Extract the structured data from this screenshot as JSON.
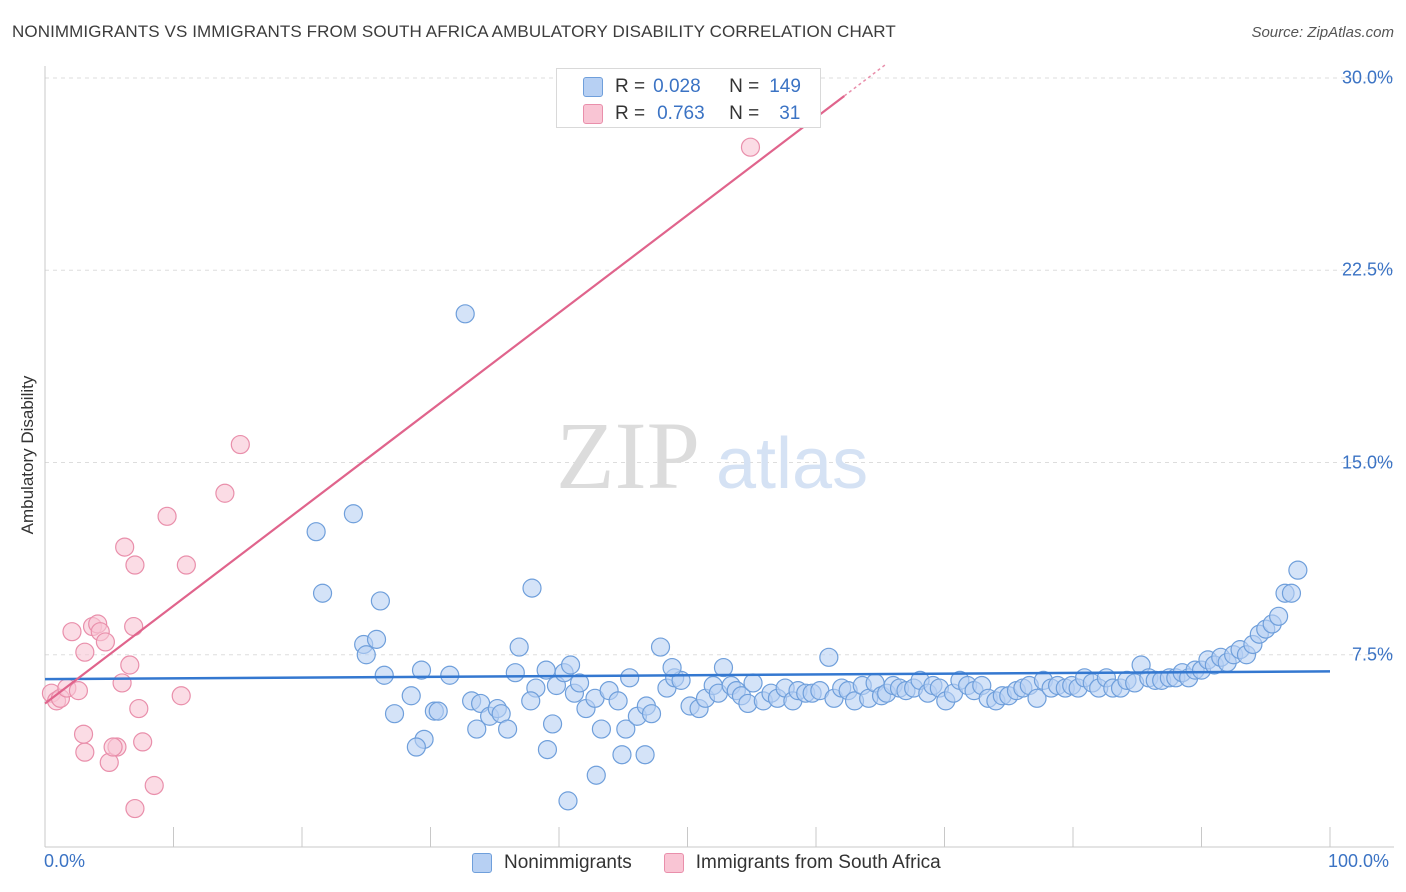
{
  "title": "NONIMMIGRANTS VS IMMIGRANTS FROM SOUTH AFRICA AMBULATORY DISABILITY CORRELATION CHART",
  "source": "Source: ZipAtlas.com",
  "watermark": {
    "zip": "ZIP",
    "atlas": "atlas"
  },
  "legend": {
    "series1": {
      "r_label": "R =",
      "r_value": "0.028",
      "n_label": "N =",
      "n_value": "149"
    },
    "series2": {
      "r_label": "R =",
      "r_value": "0.763",
      "n_label": "N =",
      "n_value": "31"
    }
  },
  "colors": {
    "blue_fill": "#b7d0f3",
    "blue_stroke": "#6f9fdb",
    "blue_line": "#3478d0",
    "pink_fill": "#f9c5d4",
    "pink_stroke": "#e98fab",
    "pink_line": "#e0648c",
    "tick_text": "#3b73c4"
  },
  "chart_data": {
    "type": "scatter",
    "title": "NONIMMIGRANTS VS IMMIGRANTS FROM SOUTH AFRICA AMBULATORY DISABILITY CORRELATION CHART",
    "xlabel": "",
    "ylabel": "Ambulatory Disability",
    "xlim": [
      0,
      100
    ],
    "ylim": [
      0,
      30
    ],
    "x_tick_labels": [
      "0.0%",
      "100.0%"
    ],
    "y_ticks": [
      7.5,
      15.0,
      22.5,
      30.0
    ],
    "y_tick_labels": [
      "7.5%",
      "15.0%",
      "22.5%",
      "30.0%"
    ],
    "grid": "horizontal dashed",
    "legend_position": "top-center and bottom",
    "series": [
      {
        "name": "Nonimmigrants",
        "R": 0.028,
        "N": 149,
        "trend": {
          "x": [
            0,
            100
          ],
          "y": [
            6.55,
            6.85
          ]
        },
        "points": [
          [
            21.1,
            12.3
          ],
          [
            24.0,
            13.0
          ],
          [
            21.6,
            9.9
          ],
          [
            26.1,
            9.6
          ],
          [
            32.7,
            20.8
          ],
          [
            37.9,
            10.1
          ],
          [
            24.8,
            7.9
          ],
          [
            25.0,
            7.5
          ],
          [
            25.8,
            8.1
          ],
          [
            26.4,
            6.7
          ],
          [
            27.2,
            5.2
          ],
          [
            28.5,
            5.9
          ],
          [
            29.3,
            6.9
          ],
          [
            29.5,
            4.2
          ],
          [
            30.3,
            5.3
          ],
          [
            30.6,
            5.3
          ],
          [
            31.5,
            6.7
          ],
          [
            33.2,
            5.7
          ],
          [
            33.9,
            5.6
          ],
          [
            34.6,
            5.1
          ],
          [
            35.2,
            5.4
          ],
          [
            35.5,
            5.2
          ],
          [
            36.9,
            7.8
          ],
          [
            36.6,
            6.8
          ],
          [
            38.2,
            6.2
          ],
          [
            39.0,
            6.9
          ],
          [
            39.5,
            4.8
          ],
          [
            39.8,
            6.3
          ],
          [
            40.4,
            6.8
          ],
          [
            40.9,
            7.1
          ],
          [
            41.2,
            6.0
          ],
          [
            41.6,
            6.4
          ],
          [
            42.1,
            5.4
          ],
          [
            42.8,
            5.8
          ],
          [
            43.3,
            4.6
          ],
          [
            43.9,
            6.1
          ],
          [
            44.6,
            5.7
          ],
          [
            45.2,
            4.6
          ],
          [
            45.5,
            6.6
          ],
          [
            46.1,
            5.1
          ],
          [
            46.8,
            5.5
          ],
          [
            47.2,
            5.2
          ],
          [
            47.9,
            7.8
          ],
          [
            48.4,
            6.2
          ],
          [
            49.0,
            6.6
          ],
          [
            49.5,
            6.5
          ],
          [
            50.2,
            5.5
          ],
          [
            50.9,
            5.4
          ],
          [
            51.4,
            5.8
          ],
          [
            52.0,
            6.3
          ],
          [
            52.4,
            6.0
          ],
          [
            52.8,
            7.0
          ],
          [
            53.4,
            6.3
          ],
          [
            53.8,
            6.1
          ],
          [
            54.2,
            5.9
          ],
          [
            54.7,
            5.6
          ],
          [
            55.1,
            6.4
          ],
          [
            55.9,
            5.7
          ],
          [
            56.5,
            6.0
          ],
          [
            57.0,
            5.8
          ],
          [
            57.6,
            6.2
          ],
          [
            58.2,
            5.7
          ],
          [
            58.6,
            6.1
          ],
          [
            59.2,
            6.0
          ],
          [
            59.7,
            6.0
          ],
          [
            60.3,
            6.1
          ],
          [
            61.0,
            7.4
          ],
          [
            61.4,
            5.8
          ],
          [
            62.0,
            6.2
          ],
          [
            62.5,
            6.1
          ],
          [
            63.0,
            5.7
          ],
          [
            63.6,
            6.3
          ],
          [
            64.1,
            5.8
          ],
          [
            64.6,
            6.4
          ],
          [
            65.1,
            5.9
          ],
          [
            65.5,
            6.0
          ],
          [
            66.0,
            6.3
          ],
          [
            66.5,
            6.2
          ],
          [
            67.0,
            6.1
          ],
          [
            67.6,
            6.2
          ],
          [
            68.1,
            6.5
          ],
          [
            68.7,
            6.0
          ],
          [
            69.1,
            6.3
          ],
          [
            69.6,
            6.2
          ],
          [
            70.1,
            5.7
          ],
          [
            70.7,
            6.0
          ],
          [
            71.2,
            6.5
          ],
          [
            71.8,
            6.3
          ],
          [
            72.3,
            6.1
          ],
          [
            72.9,
            6.3
          ],
          [
            73.4,
            5.8
          ],
          [
            74.0,
            5.7
          ],
          [
            74.5,
            5.9
          ],
          [
            75.0,
            5.9
          ],
          [
            75.6,
            6.1
          ],
          [
            76.1,
            6.2
          ],
          [
            76.6,
            6.3
          ],
          [
            77.2,
            5.8
          ],
          [
            77.7,
            6.5
          ],
          [
            78.3,
            6.2
          ],
          [
            78.8,
            6.3
          ],
          [
            79.4,
            6.2
          ],
          [
            79.9,
            6.3
          ],
          [
            80.4,
            6.2
          ],
          [
            80.9,
            6.6
          ],
          [
            81.5,
            6.4
          ],
          [
            82.0,
            6.2
          ],
          [
            82.6,
            6.6
          ],
          [
            83.1,
            6.2
          ],
          [
            83.7,
            6.2
          ],
          [
            84.2,
            6.5
          ],
          [
            84.8,
            6.4
          ],
          [
            85.3,
            7.1
          ],
          [
            85.9,
            6.6
          ],
          [
            86.4,
            6.5
          ],
          [
            86.9,
            6.5
          ],
          [
            87.5,
            6.6
          ],
          [
            88.0,
            6.6
          ],
          [
            88.5,
            6.8
          ],
          [
            89.0,
            6.6
          ],
          [
            89.5,
            6.9
          ],
          [
            90.0,
            6.9
          ],
          [
            90.5,
            7.3
          ],
          [
            91.0,
            7.1
          ],
          [
            91.5,
            7.4
          ],
          [
            92.0,
            7.2
          ],
          [
            92.5,
            7.5
          ],
          [
            93.0,
            7.7
          ],
          [
            93.5,
            7.5
          ],
          [
            94.0,
            7.9
          ],
          [
            94.5,
            8.3
          ],
          [
            95.0,
            8.5
          ],
          [
            95.5,
            8.7
          ],
          [
            96.0,
            9.0
          ],
          [
            96.5,
            9.9
          ],
          [
            97.0,
            9.9
          ],
          [
            97.5,
            10.8
          ],
          [
            33.6,
            4.6
          ],
          [
            36.0,
            4.6
          ],
          [
            39.1,
            3.8
          ],
          [
            42.9,
            2.8
          ],
          [
            44.9,
            3.6
          ],
          [
            46.7,
            3.6
          ],
          [
            28.9,
            3.9
          ],
          [
            40.7,
            1.8
          ],
          [
            37.8,
            5.7
          ],
          [
            48.8,
            7.0
          ]
        ]
      },
      {
        "name": "Immigrants from South Africa",
        "R": 0.763,
        "N": 31,
        "trend": {
          "x": [
            0,
            62.2
          ],
          "y": [
            5.6,
            29.3
          ]
        },
        "points": [
          [
            0.5,
            6.0
          ],
          [
            0.9,
            5.7
          ],
          [
            1.2,
            5.8
          ],
          [
            1.7,
            6.2
          ],
          [
            2.1,
            8.4
          ],
          [
            2.6,
            6.1
          ],
          [
            3.1,
            7.6
          ],
          [
            3.7,
            8.6
          ],
          [
            3.1,
            3.7
          ],
          [
            4.1,
            8.7
          ],
          [
            4.3,
            8.4
          ],
          [
            4.7,
            8.0
          ],
          [
            5.0,
            3.3
          ],
          [
            5.6,
            3.9
          ],
          [
            6.0,
            6.4
          ],
          [
            6.9,
            8.6
          ],
          [
            7.0,
            1.5
          ],
          [
            7.3,
            5.4
          ],
          [
            5.3,
            3.9
          ],
          [
            6.2,
            11.7
          ],
          [
            7.0,
            11.0
          ],
          [
            6.6,
            7.1
          ],
          [
            7.6,
            4.1
          ],
          [
            8.5,
            2.4
          ],
          [
            9.5,
            12.9
          ],
          [
            10.6,
            5.9
          ],
          [
            11.0,
            11.0
          ],
          [
            14.0,
            13.8
          ],
          [
            15.2,
            15.7
          ],
          [
            3.0,
            4.4
          ],
          [
            54.9,
            27.3
          ]
        ]
      }
    ]
  }
}
